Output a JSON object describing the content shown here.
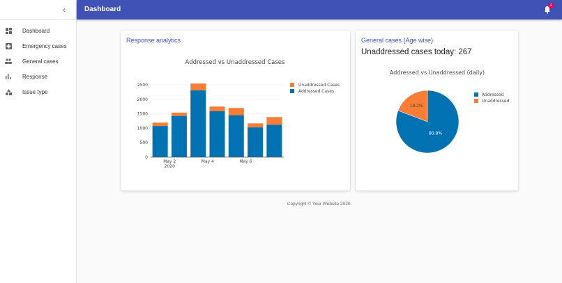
{
  "sidebar": {
    "items": [
      {
        "label": "Dashboard",
        "icon": "dashboard-icon"
      },
      {
        "label": "Emergency cases",
        "icon": "hospital-icon"
      },
      {
        "label": "General cases",
        "icon": "people-icon"
      },
      {
        "label": "Response",
        "icon": "bar-chart-icon"
      },
      {
        "label": "Issue type",
        "icon": "category-icon"
      }
    ]
  },
  "header": {
    "title": "Dashboard",
    "notifications": "4",
    "color": "#3f51b5"
  },
  "response_card": {
    "title": "Response analytics"
  },
  "general_card": {
    "title": "General cases (Age wise)",
    "today": "Unaddressed cases today: 267"
  },
  "footer": {
    "copyright": "Copyright © Your Website 2020."
  },
  "chart_data": [
    {
      "type": "bar",
      "stacked": true,
      "title": "Addressed vs Unaddressed Cases",
      "categories": [
        "2020-05-01",
        "2020-05-02",
        "2020-05-03",
        "2020-05-04",
        "2020-05-05",
        "2020-05-06",
        "2020-05-07"
      ],
      "x_tick_labels": [
        {
          "at": "2020-05-02",
          "label": "May 2",
          "sub": "2020"
        },
        {
          "at": "2020-05-04",
          "label": "May 4",
          "sub": ""
        },
        {
          "at": "2020-05-06",
          "label": "May 6",
          "sub": ""
        }
      ],
      "y_ticks": [
        0,
        500,
        1000,
        1500,
        2000,
        2500
      ],
      "ylim": [
        0,
        2650
      ],
      "grid": true,
      "legend": "top-right",
      "series": [
        {
          "name": "Addressed Cases",
          "color": "#0072b2",
          "values": [
            1080,
            1427,
            2313,
            1588,
            1451,
            1031,
            1120
          ]
        },
        {
          "name": "Unaddressed Cases",
          "color": "#fa7d34",
          "values": [
            113,
            113,
            234,
            161,
            249,
            138,
            267
          ]
        }
      ]
    },
    {
      "type": "pie",
      "title": "Addressed vs Unaddressed (daily)",
      "legend": "top-right",
      "slices": [
        {
          "name": "Addressed",
          "value": 80.8,
          "label": "80.8%",
          "color": "#0072b2"
        },
        {
          "name": "Unaddressed",
          "value": 19.2,
          "label": "19.2%",
          "color": "#fa7d34"
        }
      ]
    }
  ]
}
